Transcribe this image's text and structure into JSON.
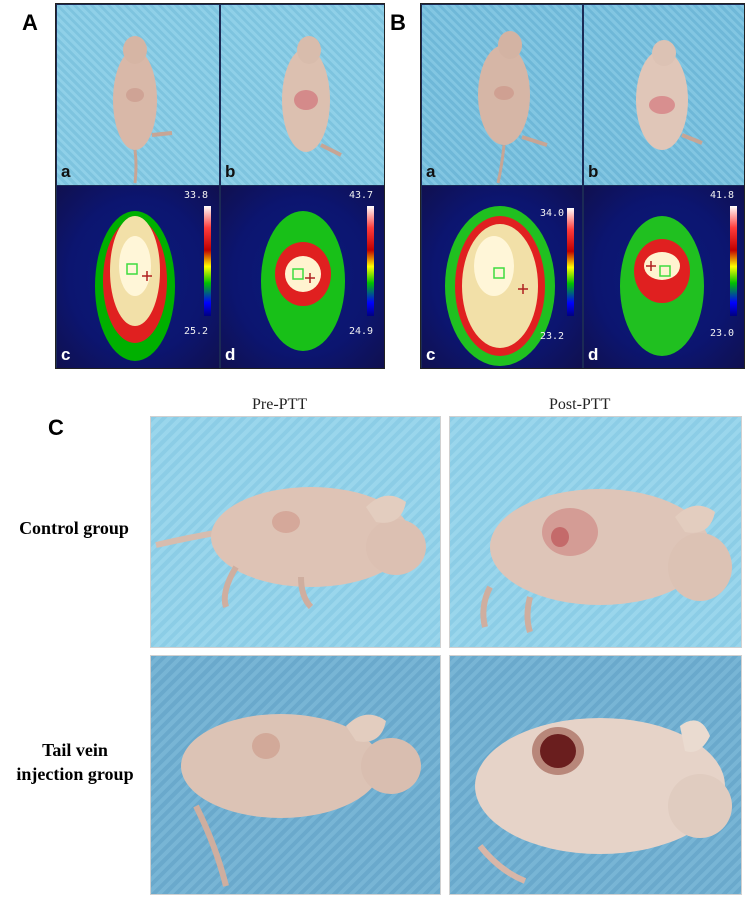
{
  "panels": {
    "A": {
      "letter": "A",
      "sub": {
        "a": "a",
        "b": "b",
        "c": "c",
        "d": "d"
      },
      "scale_c": {
        "max": "33.8",
        "min": "25.2"
      },
      "scale_d": {
        "max": "43.7",
        "min": "24.9"
      }
    },
    "B": {
      "letter": "B",
      "sub": {
        "a": "a",
        "b": "b",
        "c": "c",
        "d": "d"
      },
      "scale_c": {
        "max": "34.0",
        "min": "23.2"
      },
      "scale_d": {
        "max": "41.8",
        "min": "23.0"
      }
    },
    "C": {
      "letter": "C",
      "col_pre": "Pre-PTT",
      "col_post": "Post-PTT",
      "row_control": "Control group",
      "row_tail_line1": "Tail vein",
      "row_tail_line2": "injection group"
    }
  },
  "colors": {
    "background_blue": "#8fd0e8",
    "mouse_skin": "#d9b8a8",
    "thermal_hot": "#ffffff",
    "thermal_cold": "#0c1570"
  }
}
